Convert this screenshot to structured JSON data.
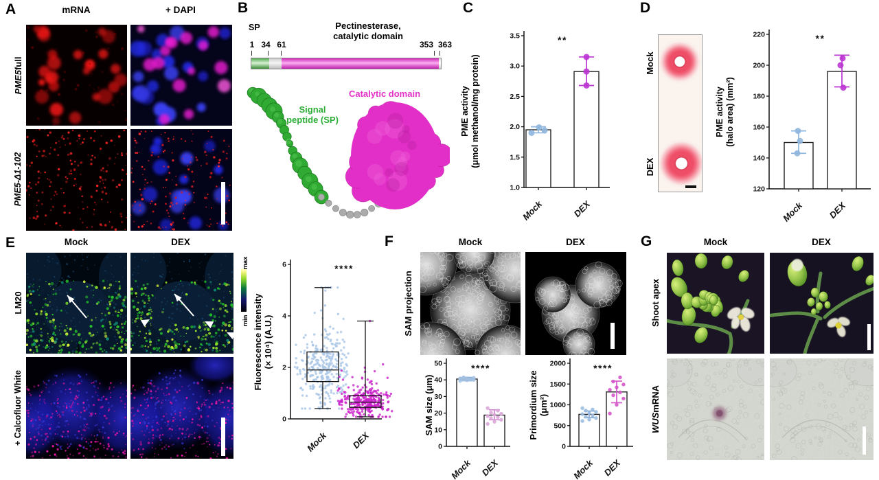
{
  "figure": {
    "panels": {
      "a": {
        "letter": "A",
        "col_headers": [
          "mRNA",
          "+ DAPI"
        ],
        "row1": {
          "italic": "PME5",
          "rest": " full"
        },
        "row2": {
          "italic": "PME5-Δ1-102",
          "rest": ""
        }
      },
      "b": {
        "letter": "B",
        "sp_label": "SP",
        "title_line1": "Pectinesterase,",
        "title_line2": "catalytic domain",
        "positions": [
          "1",
          "34",
          "61",
          "353",
          "363"
        ],
        "catalytic_label": "Catalytic domain",
        "signal_label_line1": "Signal",
        "signal_label_line2": "peptide (SP)"
      },
      "c": {
        "letter": "C"
      },
      "d": {
        "letter": "D",
        "gel_row_labels": [
          "Mock",
          "DEX"
        ]
      },
      "e": {
        "letter": "E",
        "col_headers": [
          "Mock",
          "DEX"
        ],
        "row_labels": [
          "LM20",
          "+ Calcofluor White"
        ],
        "colorbar": {
          "max": "max",
          "min": "min"
        }
      },
      "f": {
        "letter": "F",
        "col_headers": [
          "Mock",
          "DEX"
        ],
        "row_label": "SAM projection"
      },
      "g": {
        "letter": "G",
        "col_headers": [
          "Mock",
          "DEX"
        ],
        "row1": "Shoot apex",
        "row2": {
          "italic": "WUS",
          "rest": " mRNA"
        }
      }
    }
  },
  "colors": {
    "catalytic_magenta": "#e331c8",
    "signal_green": "#2fae38",
    "mock_point_blue": "#8fb6de",
    "dex_point_magenta": "#bb35d2",
    "scatter_blue": "#a9c6e6",
    "scatter_magenta": "#cb22cb"
  },
  "chart_data": [
    {
      "id": "pme_activity",
      "type": "bar",
      "categories": [
        "Mock",
        "DEX"
      ],
      "values": [
        1.95,
        2.91
      ],
      "points": [
        [
          1.9,
          1.99,
          1.94
        ],
        [
          3.15,
          2.91,
          2.68
        ]
      ],
      "point_dx": [
        [
          -10,
          1,
          9
        ],
        [
          0,
          0,
          0
        ]
      ],
      "errors": [
        [
          1.9,
          2.0
        ],
        [
          2.68,
          3.15
        ]
      ],
      "ylabel_line1": "PME activity",
      "ylabel_line2": "(μmol methanol/mg protein)",
      "ylim": [
        1.0,
        3.5
      ],
      "yticks": [
        1.0,
        1.5,
        2.0,
        2.5,
        3.0,
        3.5
      ],
      "sig": "**",
      "point_colors": [
        "#8fb6de",
        "#bb35d2"
      ],
      "error_colors": [
        "#8fb6de",
        "#bb35d2"
      ]
    },
    {
      "id": "pme_activity_halo",
      "type": "bar",
      "categories": [
        "Mock",
        "DEX"
      ],
      "values": [
        150,
        196
      ],
      "points": [
        [
          157.5,
          151,
          143
        ],
        [
          204.5,
          200,
          185.5
        ]
      ],
      "point_dx": [
        [
          -1,
          2,
          -2
        ],
        [
          1,
          -2,
          2
        ]
      ],
      "errors": [
        [
          143,
          157.5
        ],
        [
          186,
          206.5
        ]
      ],
      "ylabel_line1": "PME activity",
      "ylabel_line2": "(halo area) (mm²)",
      "ylim": [
        120,
        220
      ],
      "yticks": [
        120,
        140,
        160,
        180,
        200,
        220
      ],
      "sig": "**",
      "point_colors": [
        "#8fb6de",
        "#bb35d2"
      ],
      "error_colors": [
        "#8fb6de",
        "#bb35d2"
      ]
    },
    {
      "id": "fluorescence_intensity",
      "type": "box-scatter",
      "categories": [
        "Mock",
        "DEX"
      ],
      "box_stats": [
        {
          "min": 0.4,
          "q1": 1.45,
          "median": 1.9,
          "q3": 2.6,
          "max": 5.1,
          "n": 320
        },
        {
          "min": 0.08,
          "q1": 0.45,
          "median": 0.65,
          "q3": 0.9,
          "max": 3.8,
          "n": 320
        }
      ],
      "ylabel_line1": "Fluorescence intensity",
      "ylabel_line2": "(× 10⁴) (A.U.)",
      "ylim": [
        0,
        6
      ],
      "yticks": [
        0,
        2,
        4,
        6
      ],
      "sig": "****",
      "point_colors": [
        "#a9c6e6",
        "#cb22cb"
      ]
    },
    {
      "id": "sam_size",
      "type": "bar",
      "categories": [
        "Mock",
        "DEX"
      ],
      "values": [
        40.5,
        18.8
      ],
      "points": [
        [
          39.4,
          39.8,
          40.0,
          40.3,
          40.5,
          40.7,
          41.0,
          41.2,
          41.5,
          40.1,
          40.9
        ],
        [
          13.5,
          14.8,
          16.0,
          17.0,
          17.6,
          18.2,
          19.0,
          19.6,
          20.3,
          21.5,
          23.0
        ]
      ],
      "errors": [
        [
          39.5,
          41.5
        ],
        [
          16.0,
          22.0
        ]
      ],
      "ylabel_line1": "SAM size (μm)",
      "ylabel_line2": "",
      "ylim": [
        0,
        50
      ],
      "yticks": [
        0,
        10,
        20,
        30,
        40,
        50
      ],
      "sig": "****",
      "point_colors": [
        "#a3c0e2",
        "#dca6da"
      ],
      "error_colors": [
        "#7fa6cf",
        "#cf8ccc"
      ]
    },
    {
      "id": "primordium_size",
      "type": "bar",
      "categories": [
        "Mock",
        "DEX"
      ],
      "values": [
        770,
        1310
      ],
      "points": [
        [
          610,
          645,
          680,
          715,
          745,
          775,
          800,
          830,
          860,
          890,
          920
        ],
        [
          790,
          1000,
          1150,
          1230,
          1300,
          1360,
          1420,
          1490,
          1560,
          1660
        ]
      ],
      "errors": [
        [
          690,
          850
        ],
        [
          1050,
          1570
        ]
      ],
      "ylabel_line1": "Primordium size",
      "ylabel_line2": "(μm²)",
      "ylim": [
        0,
        2000
      ],
      "yticks": [
        0,
        500,
        1000,
        1500,
        2000
      ],
      "sig": "****",
      "point_colors": [
        "#9bbce0",
        "#d457c9"
      ],
      "error_colors": [
        "#7fa6cf",
        "#d457c9"
      ]
    }
  ]
}
